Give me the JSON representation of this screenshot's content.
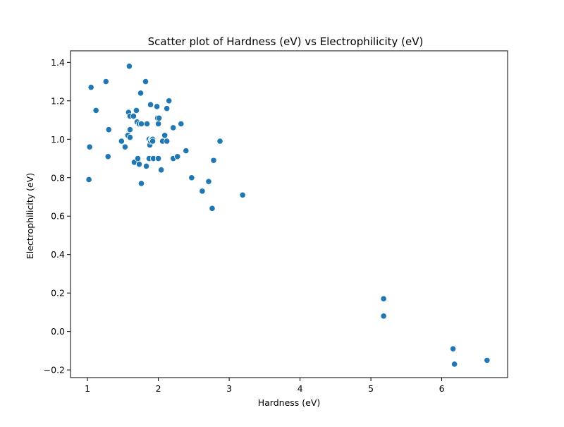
{
  "chart_data": {
    "type": "scatter",
    "title": "Scatter plot of Hardness  (eV) vs Electrophilicity (eV)",
    "xlabel": "Hardness  (eV)",
    "ylabel": "Electrophilicity (eV)",
    "xlim": [
      0.76,
      6.93
    ],
    "ylim": [
      -0.24,
      1.46
    ],
    "xticks": [
      1,
      2,
      3,
      4,
      5,
      6
    ],
    "yticks": [
      -0.2,
      0.0,
      0.2,
      0.4,
      0.6,
      0.8,
      1.0,
      1.2,
      1.4
    ],
    "xtick_labels": [
      "1",
      "2",
      "3",
      "4",
      "5",
      "6"
    ],
    "ytick_labels": [
      "−0.2",
      "0.0",
      "0.2",
      "0.4",
      "0.6",
      "0.8",
      "1.0",
      "1.2",
      "1.4"
    ],
    "grid": false,
    "marker_color": "#1f77b4",
    "marker_edge_color": "#ffffff",
    "x": [
      1.02,
      1.03,
      1.05,
      1.12,
      1.26,
      1.29,
      1.3,
      1.48,
      1.53,
      1.57,
      1.58,
      1.59,
      1.6,
      1.6,
      1.6,
      1.65,
      1.66,
      1.69,
      1.7,
      1.71,
      1.73,
      1.73,
      1.75,
      1.76,
      1.76,
      1.82,
      1.83,
      1.84,
      1.87,
      1.87,
      1.88,
      1.89,
      1.89,
      1.9,
      1.91,
      1.92,
      1.92,
      1.93,
      1.98,
      1.99,
      2.0,
      2.0,
      2.01,
      2.04,
      2.06,
      2.09,
      2.12,
      2.12,
      2.15,
      2.21,
      2.21,
      2.27,
      2.32,
      2.39,
      2.47,
      2.62,
      2.71,
      2.76,
      2.78,
      2.87,
      3.19,
      5.18,
      5.18,
      6.16,
      6.18,
      6.64
    ],
    "y": [
      0.79,
      0.96,
      1.27,
      1.15,
      1.3,
      0.91,
      1.05,
      0.99,
      0.96,
      1.02,
      1.14,
      1.38,
      1.01,
      1.12,
      1.05,
      1.12,
      0.88,
      1.15,
      1.09,
      0.9,
      0.87,
      1.08,
      1.24,
      1.08,
      0.77,
      1.3,
      0.86,
      1.08,
      0.9,
      1.0,
      0.97,
      1.18,
      0.99,
      1.0,
      1.0,
      1.0,
      0.99,
      0.9,
      1.17,
      1.11,
      1.08,
      0.9,
      1.11,
      0.84,
      0.99,
      1.02,
      0.99,
      1.16,
      1.2,
      0.9,
      1.06,
      0.91,
      1.08,
      0.94,
      0.8,
      0.73,
      0.78,
      0.64,
      0.89,
      0.99,
      0.71,
      0.17,
      0.08,
      -0.09,
      -0.17,
      -0.15
    ]
  }
}
